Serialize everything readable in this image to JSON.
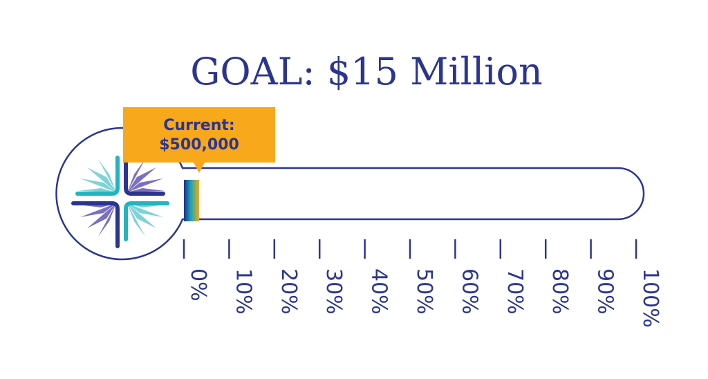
{
  "chart_data": {
    "type": "progress",
    "title": "GOAL: $15 Million",
    "goal": 15000000,
    "current": 500000,
    "progress_fraction": 0.0333,
    "callout_line1": "Current:",
    "callout_line2": "$500,000",
    "ticks": [
      0,
      10,
      20,
      30,
      40,
      50,
      60,
      70,
      80,
      90,
      100
    ],
    "tick_labels": [
      "0%",
      "10%",
      "20%",
      "30%",
      "40%",
      "50%",
      "60%",
      "70%",
      "80%",
      "90%",
      "100%"
    ]
  },
  "colors": {
    "outline": "#2b3590",
    "title": "#2b3590",
    "callout_bg": "#f7a81b",
    "callout_text": "#2b3590",
    "fill_gradient": [
      "#1d2f8f",
      "#1aa6b4",
      "#f7a81b"
    ],
    "logo_teal": "#22b5bd",
    "logo_light_teal": "#7ed3d6",
    "logo_purple": "#7b6fc2",
    "logo_navy": "#2b3590"
  },
  "logo": {
    "icon": "compass-star-logo"
  }
}
